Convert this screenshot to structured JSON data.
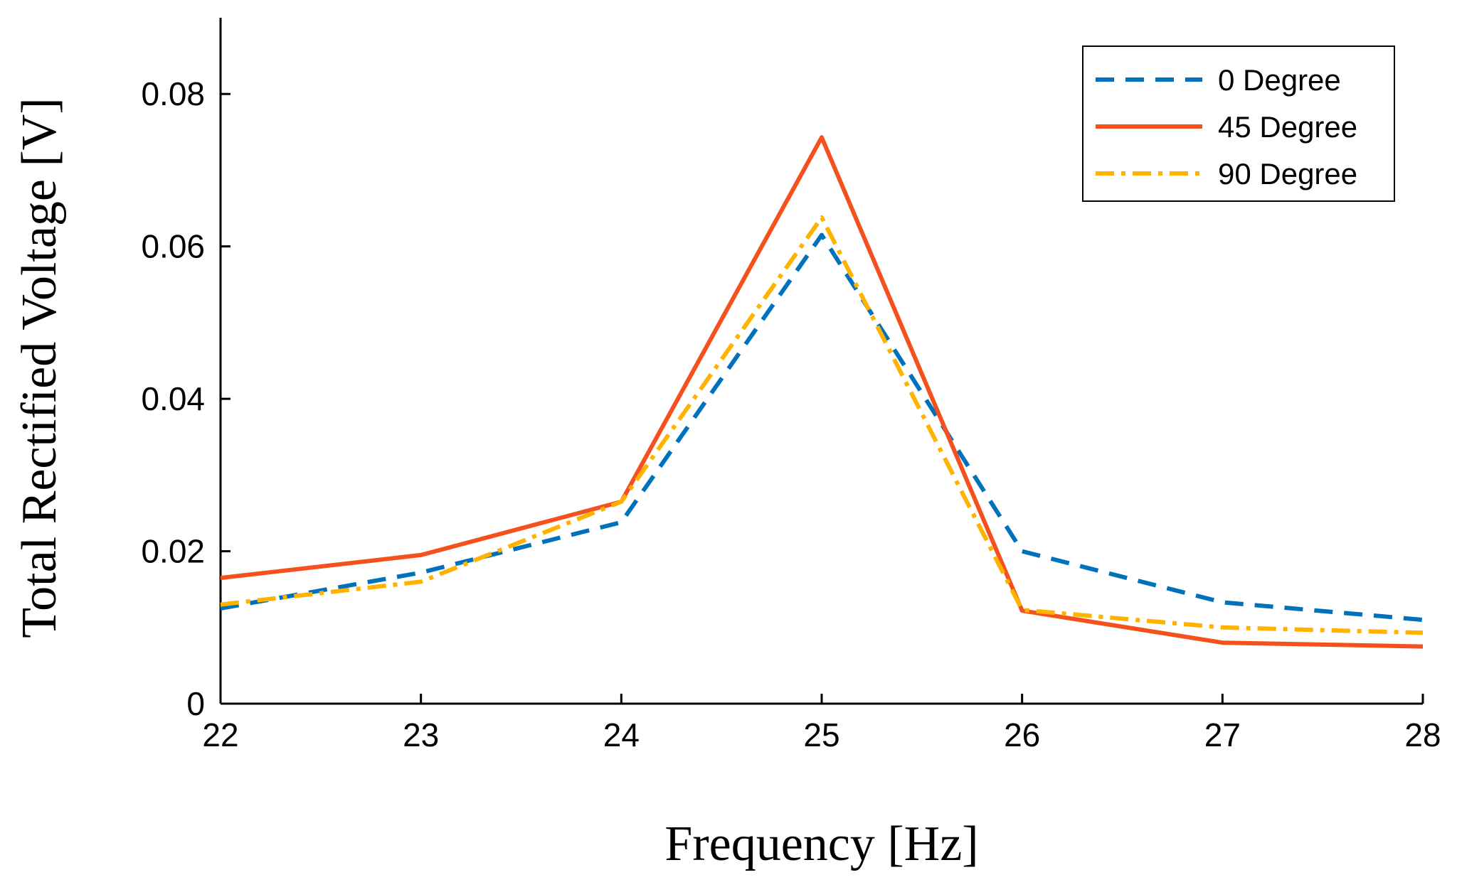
{
  "chart_data": {
    "type": "line",
    "title": "",
    "xlabel": "Frequency [Hz]",
    "ylabel": "Total Rectified Voltage [V]",
    "x": [
      22,
      23,
      24,
      25,
      26,
      27,
      28
    ],
    "xlim": [
      22,
      28
    ],
    "ylim": [
      0,
      0.09
    ],
    "xticks": [
      22,
      23,
      24,
      25,
      26,
      27,
      28
    ],
    "xtick_labels": [
      "22",
      "23",
      "24",
      "25",
      "26",
      "27",
      "28"
    ],
    "yticks": [
      0,
      0.02,
      0.04,
      0.06,
      0.08
    ],
    "ytick_labels": [
      "0",
      "0.02",
      "0.04",
      "0.06",
      "0.08"
    ],
    "grid": false,
    "legend_position": "top-right",
    "series": [
      {
        "name": "0 Degree",
        "values": [
          0.0125,
          0.0172,
          0.0238,
          0.0615,
          0.02,
          0.0133,
          0.011
        ],
        "color": "#0072BD",
        "dash": "dashed"
      },
      {
        "name": "45 Degree",
        "values": [
          0.0165,
          0.0195,
          0.0265,
          0.0743,
          0.0122,
          0.008,
          0.0075
        ],
        "color": "#F4511E",
        "dash": "solid"
      },
      {
        "name": "90 Degree",
        "values": [
          0.013,
          0.016,
          0.0265,
          0.0638,
          0.0123,
          0.01,
          0.0093
        ],
        "color": "#FFB300",
        "dash": "dashdot"
      }
    ]
  }
}
